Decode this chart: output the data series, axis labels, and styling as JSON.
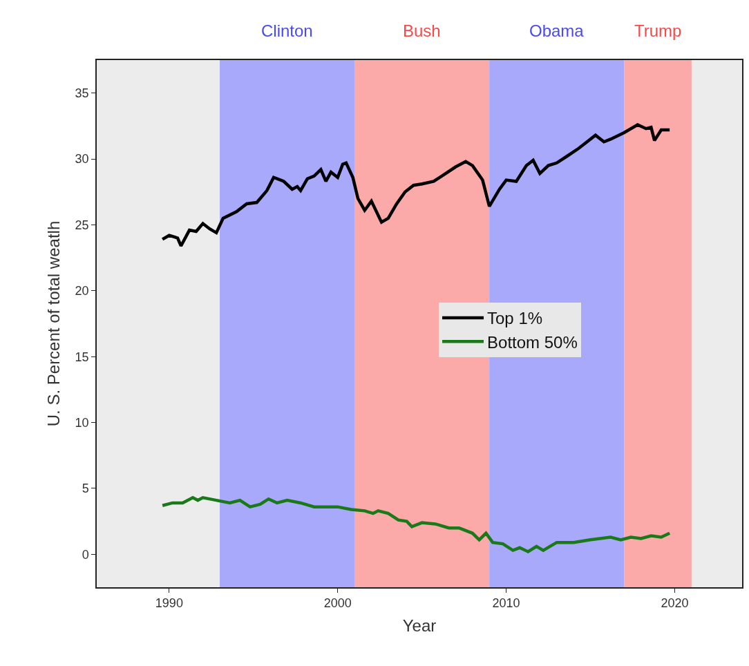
{
  "chart_data": {
    "type": "line",
    "xlabel": "Year",
    "ylabel": "U. S. Percent of total weatlh",
    "xlim": [
      1985.7,
      2024
    ],
    "xticks": [
      1990,
      2000,
      2010,
      2020
    ],
    "ylim": [
      -2.5,
      37.5
    ],
    "yticks": [
      0,
      5,
      10,
      15,
      20,
      25,
      30,
      35
    ],
    "grid": false,
    "legend": "right",
    "line_style": "solid",
    "marker": "none",
    "bands": [
      {
        "axis": "x",
        "from": 1993,
        "to": 2001,
        "label": "Clinton",
        "color": "#a9a9fb"
      },
      {
        "axis": "x",
        "from": 2001,
        "to": 2009,
        "label": "Bush",
        "color": "#fca9a9"
      },
      {
        "axis": "x",
        "from": 2009,
        "to": 2017,
        "label": "Obama",
        "color": "#a9a9fb"
      },
      {
        "axis": "x",
        "from": 2017,
        "to": 2021,
        "label": "Trump",
        "color": "#fca9a9"
      }
    ],
    "series": [
      {
        "name": "Top 1%",
        "color": "#000000",
        "x": [
          1989.6,
          1990.0,
          1990.5,
          1990.7,
          1991.2,
          1991.6,
          1992.0,
          1992.4,
          1992.8,
          1993.2,
          1994.0,
          1994.6,
          1995.2,
          1995.8,
          1996.2,
          1996.8,
          1997.3,
          1997.6,
          1997.8,
          1998.2,
          1998.6,
          1999.0,
          1999.3,
          1999.6,
          2000.0,
          2000.3,
          2000.5,
          2000.9,
          2001.2,
          2001.6,
          2002.0,
          2002.6,
          2003.0,
          2003.5,
          2004.0,
          2004.5,
          2005.0,
          2005.7,
          2006.3,
          2007.0,
          2007.6,
          2008.0,
          2008.6,
          2009.0,
          2009.6,
          2010.0,
          2010.6,
          2011.2,
          2011.6,
          2012.0,
          2012.5,
          2013.0,
          2013.6,
          2014.3,
          2014.8,
          2015.3,
          2015.8,
          2016.2,
          2017.0,
          2017.8,
          2018.3,
          2018.6,
          2018.8,
          2019.2,
          2019.7
        ],
        "values": [
          23.9,
          24.2,
          24.0,
          23.4,
          24.6,
          24.5,
          25.1,
          24.7,
          24.4,
          25.5,
          26.0,
          26.6,
          26.7,
          27.6,
          28.6,
          28.3,
          27.7,
          27.9,
          27.6,
          28.5,
          28.7,
          29.2,
          28.3,
          29.0,
          28.6,
          29.6,
          29.7,
          28.6,
          27.0,
          26.1,
          26.8,
          25.2,
          25.5,
          26.6,
          27.5,
          28.0,
          28.1,
          28.3,
          28.8,
          29.4,
          29.8,
          29.5,
          28.4,
          26.4,
          27.7,
          28.4,
          28.3,
          29.5,
          29.9,
          28.9,
          29.5,
          29.7,
          30.2,
          30.8,
          31.3,
          31.8,
          31.3,
          31.5,
          32.0,
          32.6,
          32.3,
          32.4,
          31.4,
          32.2,
          32.2
        ]
      },
      {
        "name": "Bottom 50%",
        "color": "#1a7a1a",
        "x": [
          1989.6,
          1990.2,
          1990.8,
          1991.4,
          1991.7,
          1992.0,
          1992.8,
          1993.6,
          1994.2,
          1994.8,
          1995.4,
          1995.9,
          1996.4,
          1997.0,
          1997.8,
          1998.6,
          1999.4,
          2000.0,
          2000.8,
          2001.6,
          2002.1,
          2002.4,
          2003.0,
          2003.6,
          2004.1,
          2004.4,
          2005.0,
          2005.8,
          2006.6,
          2007.2,
          2008.0,
          2008.4,
          2008.8,
          2009.2,
          2009.8,
          2010.4,
          2010.8,
          2011.3,
          2011.8,
          2012.2,
          2012.6,
          2013.0,
          2014.0,
          2015.0,
          2016.2,
          2016.8,
          2017.4,
          2018.0,
          2018.6,
          2019.2,
          2019.7
        ],
        "values": [
          3.7,
          3.9,
          3.9,
          4.3,
          4.1,
          4.3,
          4.1,
          3.9,
          4.1,
          3.6,
          3.8,
          4.2,
          3.9,
          4.1,
          3.9,
          3.6,
          3.6,
          3.6,
          3.4,
          3.3,
          3.1,
          3.3,
          3.1,
          2.6,
          2.5,
          2.1,
          2.4,
          2.3,
          2.0,
          2.0,
          1.6,
          1.1,
          1.6,
          0.9,
          0.8,
          0.3,
          0.5,
          0.2,
          0.6,
          0.3,
          0.6,
          0.9,
          0.9,
          1.1,
          1.3,
          1.1,
          1.3,
          1.2,
          1.4,
          1.3,
          1.6
        ]
      }
    ]
  }
}
